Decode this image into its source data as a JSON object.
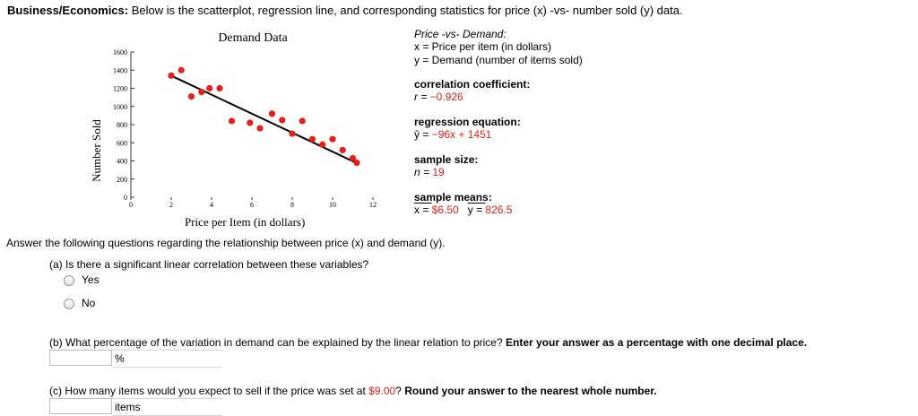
{
  "header": {
    "topic": "Business/Economics:",
    "description": "Below is the scatterplot, regression line, and corresponding statistics for price (x) -vs- number sold (y) data."
  },
  "stats": {
    "title": "Price -vs- Demand:",
    "x_def": "x = Price per item (in dollars)",
    "y_def": "y = Demand (number of items sold)",
    "correlation_label": "correlation coefficient:",
    "correlation_prefix": "r = ",
    "correlation_value": "−0.926",
    "regression_label": "regression equation:",
    "regression_prefix": "ŷ = ",
    "regression_value": "−96x + 1451",
    "sample_size_label": "sample size:",
    "sample_size_prefix": "n = ",
    "sample_size_value": "19",
    "means_label": "sample means:",
    "x_mean_prefix": "x = ",
    "x_mean_value": "$6.50",
    "y_mean_prefix": "y = ",
    "y_mean_value": "826.5"
  },
  "chart_data": {
    "type": "scatter",
    "title": "Demand Data",
    "xlabel": "Price per Item (in dollars)",
    "ylabel": "Number Sold",
    "xlim": [
      0,
      12
    ],
    "ylim": [
      0,
      1600
    ],
    "xticks": [
      0,
      2,
      4,
      6,
      8,
      10,
      12
    ],
    "yticks": [
      0,
      200,
      400,
      600,
      800,
      1000,
      1200,
      1400,
      1600
    ],
    "points": [
      {
        "x": 2.0,
        "y": 1340
      },
      {
        "x": 2.5,
        "y": 1400
      },
      {
        "x": 3.0,
        "y": 1110
      },
      {
        "x": 3.5,
        "y": 1160
      },
      {
        "x": 3.9,
        "y": 1200
      },
      {
        "x": 4.4,
        "y": 1200
      },
      {
        "x": 5.0,
        "y": 840
      },
      {
        "x": 5.9,
        "y": 820
      },
      {
        "x": 6.4,
        "y": 760
      },
      {
        "x": 7.0,
        "y": 920
      },
      {
        "x": 7.5,
        "y": 850
      },
      {
        "x": 8.0,
        "y": 700
      },
      {
        "x": 8.5,
        "y": 840
      },
      {
        "x": 9.0,
        "y": 640
      },
      {
        "x": 9.5,
        "y": 580
      },
      {
        "x": 10.0,
        "y": 640
      },
      {
        "x": 10.5,
        "y": 520
      },
      {
        "x": 11.0,
        "y": 430
      },
      {
        "x": 11.2,
        "y": 380
      }
    ],
    "regression_line": {
      "x": [
        2.0,
        11.2
      ],
      "y": [
        1339,
        376
      ]
    },
    "point_color": "#e3201b",
    "line_color": "#000000",
    "grid": false
  },
  "question": {
    "intro": "Answer the following questions regarding the relationship between price (x) and demand (y).",
    "part_a": "(a) Is there a significant linear correlation between these variables?",
    "options": [
      "Yes",
      "No"
    ],
    "part_b": "(b) What percentage of the variation in demand can be explained by the linear relation to price?",
    "part_b_instruction": "Enter your answer as a percentage with one decimal place.",
    "part_b_unit": "%",
    "part_c_pre": "(c) How many items would you expect to sell if the price was set at ",
    "part_c_price": "$9.00",
    "part_c_post": "?",
    "part_c_instruction": "Round your answer to the nearest whole number.",
    "part_c_unit": "items"
  }
}
